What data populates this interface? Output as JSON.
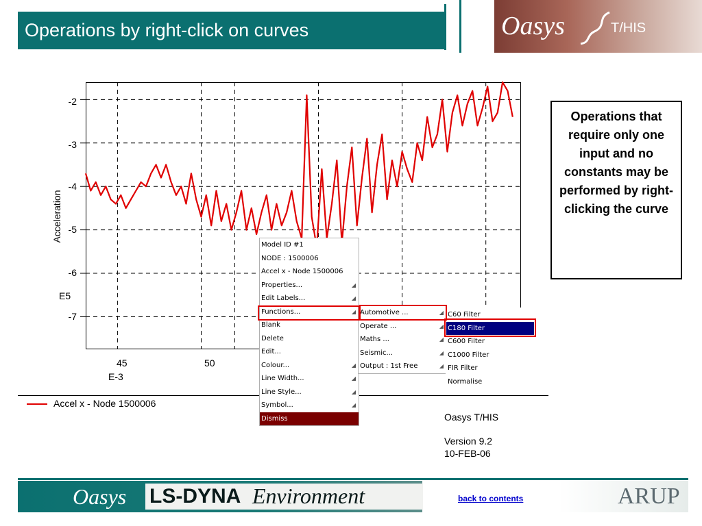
{
  "slide": {
    "title": "Operations by right-click on curves"
  },
  "logo": {
    "brand": "Oasys",
    "product": "T/HIS"
  },
  "chart_data": {
    "type": "line",
    "ylabel": "Acceleration",
    "y_exponent": "E5",
    "x_exponent": "E-3",
    "x_ticks": [
      "45",
      "50"
    ],
    "y_ticks": [
      "-2",
      "-3",
      "-4",
      "-5",
      "-6",
      "-7"
    ],
    "xlim": [
      43.1,
      69.1
    ],
    "ylim": [
      -7.75,
      -1.6
    ],
    "grid": true,
    "series": [
      {
        "name": "Accel x - Node 1500006",
        "color": "#e00000",
        "x": [
          43.1,
          43.4,
          43.7,
          44.0,
          44.3,
          44.6,
          44.9,
          45.2,
          45.5,
          45.8,
          46.1,
          46.4,
          46.7,
          47.0,
          47.3,
          47.6,
          47.9,
          48.2,
          48.5,
          48.8,
          49.1,
          49.4,
          49.7,
          50.0,
          50.3,
          50.6,
          50.9,
          51.2,
          51.5,
          51.8,
          52.1,
          52.4,
          52.7,
          53.0,
          53.3,
          53.6,
          53.9,
          54.2,
          54.5,
          54.8,
          55.1,
          55.4,
          55.7,
          56.0,
          56.3,
          56.6,
          56.9,
          57.2,
          57.5,
          57.8,
          58.1,
          58.4,
          58.7,
          59.0,
          59.3,
          59.6,
          59.9,
          60.2,
          60.5,
          60.8,
          61.1,
          61.4,
          61.7,
          62.0,
          62.3,
          62.6,
          62.9,
          63.2,
          63.5,
          63.8,
          64.1,
          64.4,
          64.7,
          65.0,
          65.3,
          65.6,
          65.9,
          66.2,
          66.5,
          66.8,
          67.1,
          67.4,
          67.7,
          68.0,
          68.3,
          68.6
        ],
        "y": [
          -3.7,
          -4.1,
          -3.9,
          -4.2,
          -4.0,
          -4.3,
          -4.4,
          -4.2,
          -4.5,
          -4.3,
          -4.1,
          -3.9,
          -4.0,
          -3.7,
          -3.5,
          -3.8,
          -3.5,
          -3.9,
          -4.2,
          -4.0,
          -4.4,
          -3.7,
          -4.3,
          -4.7,
          -4.2,
          -4.9,
          -4.1,
          -4.8,
          -4.4,
          -5.0,
          -4.6,
          -4.1,
          -5.0,
          -4.5,
          -5.1,
          -4.6,
          -4.2,
          -5.0,
          -4.4,
          -4.9,
          -4.6,
          -4.1,
          -4.8,
          -5.2,
          -1.9,
          -4.7,
          -5.4,
          -3.6,
          -5.2,
          -4.4,
          -3.4,
          -5.3,
          -4.0,
          -3.1,
          -4.9,
          -3.8,
          -2.9,
          -4.6,
          -3.5,
          -2.8,
          -4.3,
          -3.4,
          -4.0,
          -3.2,
          -3.6,
          -3.9,
          -3.0,
          -3.4,
          -2.4,
          -3.1,
          -2.8,
          -2.0,
          -3.2,
          -2.3,
          -1.9,
          -2.6,
          -2.1,
          -1.8,
          -2.6,
          -2.2,
          -1.7,
          -2.5,
          -2.3,
          -1.6,
          -1.8,
          -2.4
        ]
      }
    ]
  },
  "legend": {
    "entry": "Accel x - Node 1500006"
  },
  "app_info": {
    "name": "Oasys T/HIS",
    "version": "Version 9.2",
    "date": "10-FEB-06"
  },
  "menu_main": {
    "items": [
      {
        "label": "Model ID #1",
        "submenu": false
      },
      {
        "label": "NODE : 1500006",
        "submenu": false
      },
      {
        "label": "Accel x - Node 1500006",
        "submenu": false
      },
      {
        "label": "Properties...",
        "submenu": true
      },
      {
        "label": "Edit Labels...",
        "submenu": true
      },
      {
        "label": "Functions...",
        "submenu": true
      },
      {
        "label": "Blank",
        "submenu": false
      },
      {
        "label": "Delete",
        "submenu": false
      },
      {
        "label": "Edit...",
        "submenu": false
      },
      {
        "label": "Colour...",
        "submenu": true
      },
      {
        "label": "Line Width...",
        "submenu": true
      },
      {
        "label": "Line Style...",
        "submenu": true
      },
      {
        "label": "Symbol...",
        "submenu": true
      },
      {
        "label": "Dismiss",
        "submenu": false
      }
    ]
  },
  "menu_functions": {
    "items": [
      {
        "label": "Automotive ...",
        "submenu": true
      },
      {
        "label": "Operate ...",
        "submenu": true
      },
      {
        "label": "Maths ...",
        "submenu": true
      },
      {
        "label": "Seismic...",
        "submenu": true
      },
      {
        "label": "Output : 1st Free",
        "submenu": true
      }
    ]
  },
  "menu_automotive": {
    "items": [
      {
        "label": "C60 Filter"
      },
      {
        "label": "C180 Filter"
      },
      {
        "label": "C600 Filter"
      },
      {
        "label": "C1000 Filter"
      },
      {
        "label": "FIR Filter"
      },
      {
        "label": "Normalise"
      }
    ]
  },
  "callout": {
    "text": "Operations that require only one input and no constants may be performed by right-clicking the curve"
  },
  "footer": {
    "brand": "Oasys",
    "product_bold": "LS-DYNA",
    "product_italic": "Environment",
    "back_link": "back to contents",
    "company": "ARUP"
  }
}
